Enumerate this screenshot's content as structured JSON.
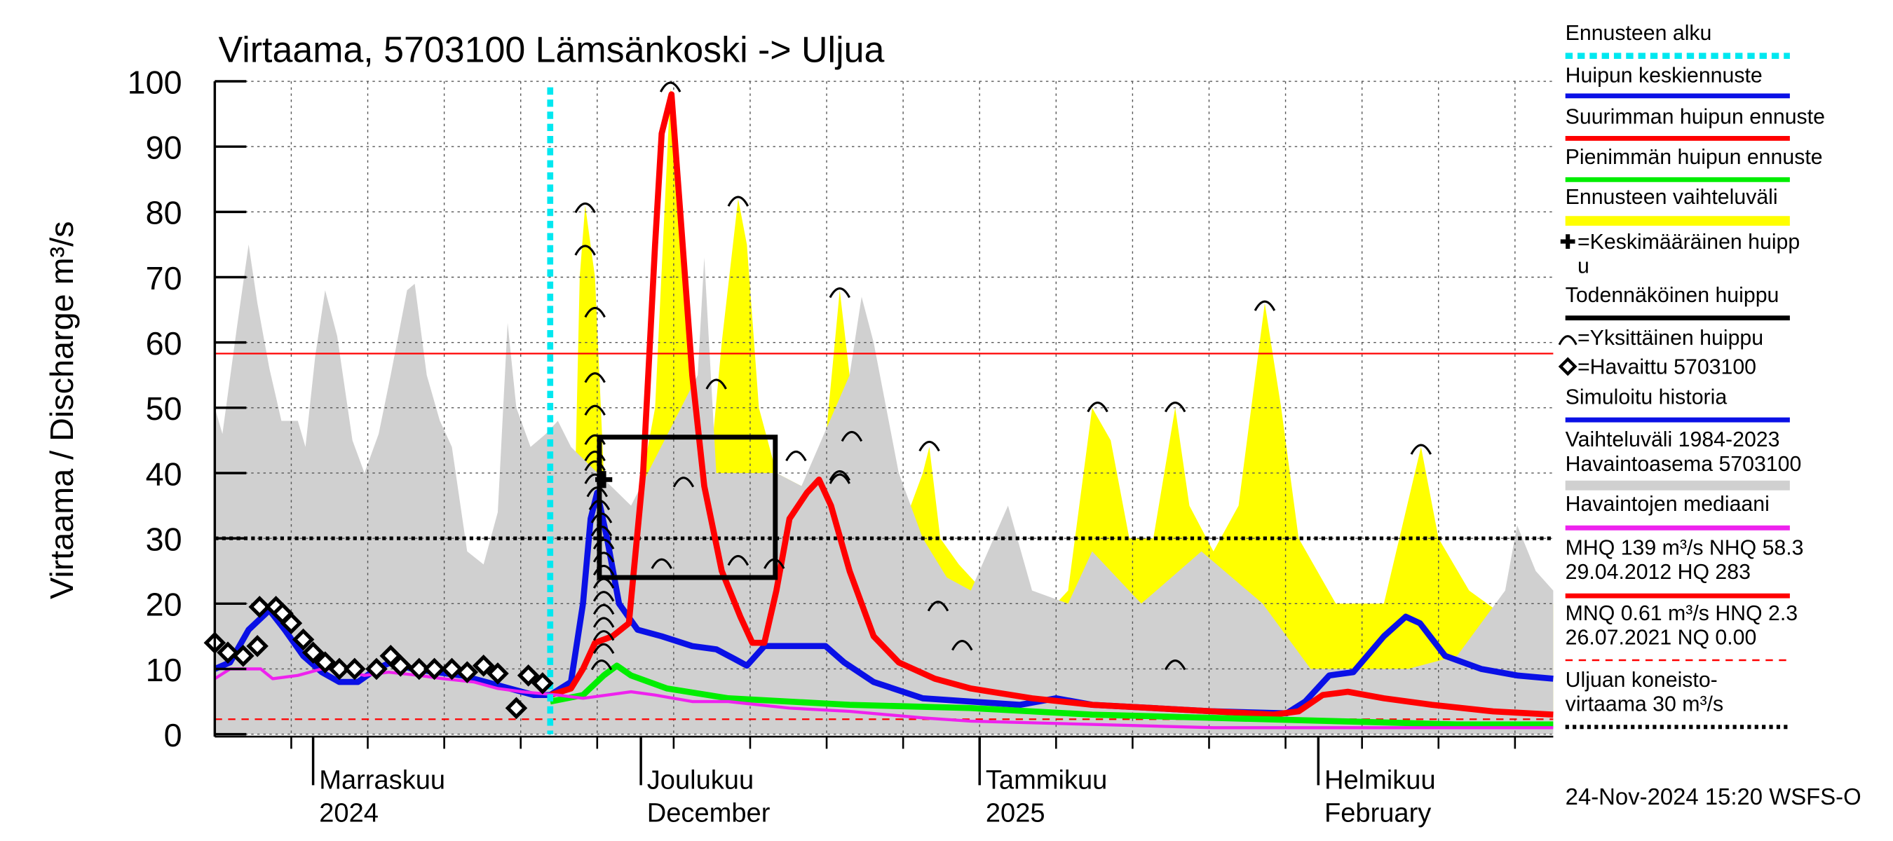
{
  "chart_data": {
    "type": "line",
    "title": "Virtaama, 5703100 Lämsänkoski -> Uljua",
    "y_label": "Virtaama / Discharge   m³/s",
    "footer": "24-Nov-2024 15:20 WSFS-O",
    "xlim": [
      0,
      122.5
    ],
    "xticks": [
      {
        "value": 9,
        "label": [
          "Marraskuu",
          "2024"
        ]
      },
      {
        "value": 39,
        "label": [
          "Joulukuu",
          "December"
        ]
      },
      {
        "value": 70,
        "label": [
          "Tammikuu",
          "2025"
        ]
      },
      {
        "value": 101,
        "label": [
          "Helmikuu",
          "February"
        ]
      }
    ],
    "xgrid": [
      7,
      14,
      21,
      28,
      35,
      42,
      49,
      56,
      63,
      70,
      77,
      84,
      91,
      98,
      105,
      112,
      119
    ],
    "ylim": [
      0,
      100
    ],
    "yticks": [
      0,
      10,
      20,
      30,
      40,
      50,
      60,
      70,
      80,
      90,
      100
    ],
    "grid": true,
    "series": [
      {
        "name": [
          "Ennusteen alku"
        ],
        "kind": "vline",
        "color": "#00e8f0",
        "style": "dotted",
        "x": 30.7
      },
      {
        "name": [
          "Huipun keskiennuste"
        ],
        "kind": "line",
        "color": "#0a10e6",
        "x": [
          30.7,
          32.6,
          33.7,
          34.4,
          35,
          35.9,
          37,
          38.7,
          40.9,
          43.7,
          45.9,
          47.6,
          48.7,
          50.3,
          53.7,
          55.9,
          57.6,
          60.3,
          64.8,
          69.2,
          73.7,
          77,
          80.3,
          85.9,
          91.4,
          98.1,
          99.8,
          102,
          104.2,
          107,
          109,
          110.3,
          112.6,
          115.9,
          119.2,
          122.5
        ],
        "values": [
          6,
          8,
          20,
          33,
          37,
          30,
          20,
          16,
          15,
          13.5,
          13,
          11.5,
          10.5,
          13.5,
          13.5,
          13.5,
          11,
          8,
          5.5,
          5,
          4.5,
          5.5,
          4.5,
          4,
          3.5,
          3.2,
          5,
          9,
          9.5,
          15,
          18,
          17,
          12,
          10,
          9,
          8.5
        ]
      },
      {
        "name": [
          "Suurimman huipun ennuste"
        ],
        "kind": "line",
        "color": "#ff0000",
        "x": [
          30.7,
          32.6,
          33.7,
          34.8,
          36.4,
          37.9,
          39.2,
          40.3,
          40.9,
          41.8,
          42.6,
          43.7,
          44.8,
          46.4,
          48.1,
          49.2,
          50.3,
          51.4,
          52.6,
          54.2,
          55.3,
          56.4,
          58.1,
          60.3,
          62.6,
          65.9,
          69.2,
          74.8,
          80.3,
          85.9,
          91.4,
          96.9,
          99.2,
          101.4,
          103.7,
          107,
          111.4,
          117,
          122.5
        ],
        "values": [
          6,
          7,
          10,
          14,
          15,
          17,
          40,
          75,
          92,
          98,
          80,
          55,
          38,
          25,
          18,
          14,
          14,
          22,
          33,
          37,
          39,
          35,
          25,
          15,
          11,
          8.5,
          7,
          5.5,
          4.5,
          4,
          3.5,
          3,
          3.5,
          6,
          6.5,
          5.5,
          4.5,
          3.5,
          3
        ]
      },
      {
        "name": [
          "Pienimmän huipun ennuste"
        ],
        "kind": "line",
        "color": "#00ee00",
        "x": [
          30.7,
          33.7,
          35.6,
          36.8,
          38.1,
          41.4,
          47,
          58.1,
          69.2,
          80.3,
          91.4,
          102.6,
          113.7,
          122.5
        ],
        "values": [
          5,
          6,
          9,
          10.5,
          9,
          7,
          5.5,
          4.5,
          4,
          3,
          2.5,
          2,
          1.5,
          1.5
        ]
      },
      {
        "name": [
          "Ennusteen vaihteluväli"
        ],
        "kind": "area",
        "color": "#ffff00",
        "x": [
          30.7,
          32.6,
          33.4,
          33.9,
          34.8,
          35.6,
          36.4,
          38.1,
          40.3,
          41.7,
          42.6,
          44.2,
          45.3,
          46.4,
          47.9,
          48.7,
          49.8,
          51.4,
          53.7,
          55.9,
          57.2,
          58.1,
          59.8,
          62.6,
          64.8,
          65.4,
          66.4,
          68.1,
          70.3,
          72.6,
          75.9,
          78.1,
          80.3,
          82,
          83.7,
          85.9,
          87.9,
          89.2,
          91.4,
          93.7,
          96.1,
          97.6,
          99.2,
          102.6,
          107,
          110.4,
          112,
          114.8,
          118.1,
          120.9,
          122.5
        ],
        "values": [
          5,
          10,
          70,
          81,
          70,
          40,
          30,
          30,
          50,
          99,
          80,
          50,
          40,
          60,
          82,
          75,
          50,
          40,
          38,
          45,
          68,
          55,
          35,
          30,
          40,
          44,
          30,
          26,
          22,
          20,
          18,
          22,
          50,
          45,
          30,
          30,
          50,
          35,
          28,
          35,
          66,
          50,
          30,
          20,
          20,
          44,
          30,
          22,
          18,
          16,
          20
        ],
        "lower": [
          5,
          5,
          5,
          5,
          4,
          4,
          4,
          4,
          4,
          4,
          4,
          4,
          3.5,
          3.5,
          3.5,
          3.5,
          3.5,
          3,
          3,
          3,
          3,
          3,
          2.5,
          2.5,
          2.5,
          2.5,
          2.5,
          2,
          2,
          2,
          2,
          2,
          1.5,
          1.5,
          1.5,
          1.5,
          1.5,
          1.5,
          1.5,
          1.5,
          1,
          1,
          1,
          1,
          1,
          1,
          1,
          1,
          1,
          1,
          1
        ]
      },
      {
        "name": [
          "=Keskimääräinen huipp",
          "u"
        ],
        "kind": "plus",
        "color": "#000000",
        "x": [
          35.6
        ],
        "values": [
          39
        ]
      },
      {
        "name": [
          "Todennäköinen huippu"
        ],
        "kind": "box",
        "color": "#000000",
        "x": [
          35.2,
          51.3
        ],
        "values": [
          24,
          45.5
        ]
      },
      {
        "name": [
          "=Yksittäinen huippu"
        ],
        "kind": "arc",
        "color": "#000000",
        "x": [
          33.9,
          33.9,
          34.8,
          34.8,
          34.8,
          34.8,
          34.8,
          34.8,
          34.8,
          35,
          35.2,
          35.4,
          35.4,
          35.6,
          35.6,
          35.6,
          35.6,
          35.6,
          35.6,
          35.6,
          35.6,
          35.6,
          35.4,
          41.7,
          47.9,
          45.9,
          42.9,
          40.9,
          47.9,
          51.2,
          53.2,
          57.2,
          58.3,
          57.2,
          57.2,
          65.4,
          66.2,
          68.4,
          80.8,
          87.9,
          87.9,
          96.1,
          110.4
        ],
        "values": [
          81,
          74.5,
          65,
          55,
          50,
          45.5,
          43,
          41.5,
          39.5,
          37.5,
          35.5,
          33.5,
          31.5,
          29.5,
          27.5,
          25.5,
          23.5,
          21.5,
          19.5,
          17.5,
          15.5,
          13.5,
          11,
          99.5,
          82,
          54,
          39,
          26.5,
          27,
          26.5,
          43,
          68,
          46,
          40,
          39.5,
          44.5,
          20,
          14,
          50.5,
          50.5,
          11,
          66,
          44
        ]
      },
      {
        "name": [
          "=Havaittu 5703100"
        ],
        "kind": "diamond",
        "color": "#000000",
        "x": [
          0,
          1.2,
          2.6,
          3.9,
          4.1,
          5.6,
          6.2,
          7,
          8.1,
          9,
          10.1,
          11.4,
          12.8,
          14.8,
          16.1,
          17,
          18.7,
          20.1,
          21.7,
          23.1,
          24.6,
          25.9,
          27.6,
          28.7,
          30
        ],
        "values": [
          14,
          12.5,
          12,
          13.5,
          19.5,
          19.5,
          18.5,
          17,
          14.5,
          12.5,
          11,
          10,
          10,
          10,
          12,
          10.5,
          10,
          10,
          10,
          9.5,
          10.5,
          9.3,
          4,
          9,
          7.8
        ]
      },
      {
        "name": [
          "Simuloitu historia"
        ],
        "kind": "line",
        "color": "#0a10e6",
        "x": [
          0,
          1.4,
          3.1,
          5,
          6.4,
          8.1,
          9.8,
          11.4,
          13.1,
          14.8,
          16.1,
          18.1,
          20.3,
          22.6,
          24.8,
          27,
          29.2,
          30.7
        ],
        "values": [
          10,
          11,
          16,
          19,
          16,
          12,
          9.5,
          8,
          8,
          10,
          11,
          10,
          9.5,
          9,
          8,
          7,
          6,
          6
        ]
      },
      {
        "name": [
          "Vaihteluväli 1984-2023",
          " Havaintoasema 5703100"
        ],
        "kind": "area",
        "color": "#d0d0d0",
        "x": [
          0,
          0.7,
          2,
          3.1,
          3.9,
          5,
          6.1,
          7.6,
          8.3,
          9.2,
          10.1,
          11.2,
          12.6,
          13.7,
          15,
          16.1,
          17.6,
          18.3,
          19.4,
          20.6,
          21.7,
          23.1,
          24.6,
          25.9,
          26.8,
          27.6,
          28.9,
          30.3,
          31.4,
          32.6,
          38.1,
          44.2,
          44.8,
          45.9,
          51.4,
          53.7,
          58.1,
          59.2,
          60.3,
          62.6,
          64.8,
          67,
          69.2,
          72.6,
          74.8,
          78.1,
          80.3,
          84.8,
          90.3,
          95.9,
          100.3,
          104.8,
          109.2,
          113.7,
          118.1,
          119.2,
          120.9,
          122.5
        ],
        "values": [
          50,
          46,
          62,
          75,
          66,
          56,
          48,
          48,
          44,
          58,
          68,
          61,
          45,
          40,
          46,
          55,
          68,
          69,
          55,
          48,
          44,
          28,
          26,
          34,
          63,
          50,
          44,
          46,
          48,
          44,
          35,
          55,
          73,
          40,
          40,
          38,
          55,
          67,
          60,
          40,
          30,
          24,
          22,
          35,
          22,
          20,
          28,
          20,
          28,
          20,
          10,
          10,
          10,
          12,
          22,
          32,
          25,
          22
        ]
      },
      {
        "name": [
          "Havaintojen mediaani"
        ],
        "kind": "line",
        "color": "#ee22ee",
        "x": [
          0,
          1.4,
          4.2,
          5.3,
          7.6,
          9.8,
          11.4,
          13.7,
          15.9,
          18.7,
          20.9,
          23.7,
          25.9,
          28.1,
          31.4,
          33.7,
          35.9,
          38.1,
          40.3,
          43.7,
          47,
          52.6,
          58.1,
          64.8,
          69.2,
          80.3,
          91.4,
          102.6,
          113.7,
          122.5
        ],
        "values": [
          8.5,
          10,
          10,
          8.5,
          9,
          10,
          10,
          9,
          9.5,
          9,
          8.5,
          8,
          7,
          6.5,
          6,
          5.5,
          6,
          6.5,
          6,
          5,
          5,
          4,
          3.5,
          2.5,
          2,
          1.5,
          1,
          1,
          1,
          1
        ]
      },
      {
        "name": [
          "MHQ  139 m³/s NHQ 58.3",
          "29.04.2012 HQ  283"
        ],
        "kind": "hline",
        "color": "#ff0000",
        "style": "solid",
        "value": 58.3
      },
      {
        "name": [
          "MNQ 0.61 m³/s HNQ  2.3",
          "26.07.2021 NQ 0.00"
        ],
        "kind": "hline",
        "color": "#ff0000",
        "style": "dashed",
        "value": 2.3
      },
      {
        "name": [
          "Uljuan koneisto-",
          "virtaama 30 m³/s"
        ],
        "kind": "hline",
        "color": "#000000",
        "style": "dotted",
        "value": 30
      }
    ]
  }
}
